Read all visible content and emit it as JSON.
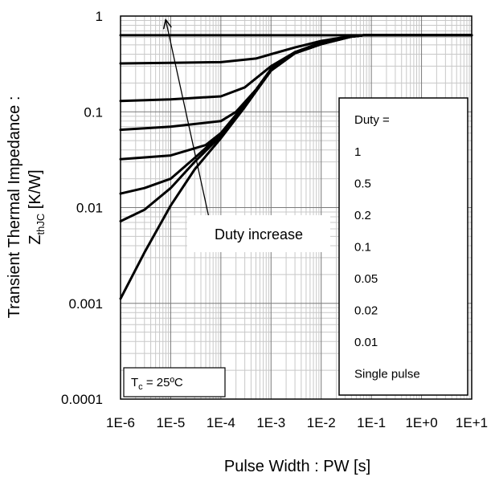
{
  "chart_data": {
    "type": "line",
    "x_scale": "log",
    "y_scale": "log",
    "xlim": [
      1e-06,
      10
    ],
    "ylim": [
      0.0001,
      1
    ],
    "grid": true,
    "xlabel": "Pulse Width : PW [s]",
    "ylabel_line1": "Transient Thermal Impedance :",
    "ylabel_line2_main": "Z",
    "ylabel_line2_sub": "thJC",
    "ylabel_line2_unit": " [K/W]",
    "x_tick_labels": [
      "1E-6",
      "1E-5",
      "1E-4",
      "1E-3",
      "1E-2",
      "1E-1",
      "1E+0",
      "1E+1"
    ],
    "y_tick_labels": [
      "0.0001",
      "0.001",
      "0.01",
      "0.1",
      "1"
    ],
    "legend_position": "right",
    "legend_header": "Duty =",
    "legend": [
      "1",
      "0.5",
      "0.2",
      "0.1",
      "0.05",
      "0.02",
      "0.01",
      "Single pulse"
    ],
    "series_color": "#000000",
    "series": [
      {
        "x": [
          1e-06,
          1e-05,
          0.0001,
          0.001,
          0.01,
          0.07,
          1,
          10
        ],
        "y": [
          0.63,
          0.63,
          0.63,
          0.63,
          0.63,
          0.63,
          0.63,
          0.63
        ]
      },
      {
        "x": [
          1e-06,
          1e-05,
          0.0001,
          0.0005,
          0.001,
          0.003,
          0.01,
          0.04,
          0.07,
          1,
          10
        ],
        "y": [
          0.32,
          0.325,
          0.33,
          0.36,
          0.4,
          0.47,
          0.55,
          0.62,
          0.63,
          0.63,
          0.63
        ]
      },
      {
        "x": [
          1e-06,
          1e-05,
          0.0001,
          0.0003,
          0.001,
          0.003,
          0.01,
          0.04,
          0.07,
          1,
          10
        ],
        "y": [
          0.13,
          0.135,
          0.145,
          0.18,
          0.3,
          0.42,
          0.53,
          0.61,
          0.63,
          0.63,
          0.63
        ]
      },
      {
        "x": [
          1e-06,
          1e-05,
          0.0001,
          0.0002,
          0.0005,
          0.001,
          0.003,
          0.01,
          0.04,
          0.07,
          1,
          10
        ],
        "y": [
          0.065,
          0.07,
          0.08,
          0.1,
          0.17,
          0.28,
          0.42,
          0.52,
          0.61,
          0.63,
          0.63,
          0.63
        ]
      },
      {
        "x": [
          1e-06,
          1e-05,
          5e-05,
          0.0001,
          0.0003,
          0.001,
          0.003,
          0.01,
          0.04,
          0.07,
          1,
          10
        ],
        "y": [
          0.032,
          0.035,
          0.045,
          0.06,
          0.12,
          0.27,
          0.41,
          0.51,
          0.61,
          0.63,
          0.63,
          0.63
        ]
      },
      {
        "x": [
          1e-06,
          3e-06,
          1e-05,
          3e-05,
          0.0001,
          0.0003,
          0.001,
          0.003,
          0.01,
          0.04,
          0.07,
          1,
          10
        ],
        "y": [
          0.014,
          0.016,
          0.02,
          0.033,
          0.058,
          0.115,
          0.27,
          0.41,
          0.51,
          0.61,
          0.63,
          0.63,
          0.63
        ]
      },
      {
        "x": [
          1e-06,
          3e-06,
          1e-05,
          3e-05,
          0.0001,
          0.0003,
          0.001,
          0.003,
          0.01,
          0.04,
          0.07,
          1,
          10
        ],
        "y": [
          0.0072,
          0.0095,
          0.016,
          0.03,
          0.056,
          0.113,
          0.27,
          0.41,
          0.51,
          0.61,
          0.63,
          0.63,
          0.63
        ]
      },
      {
        "x": [
          1e-06,
          3e-06,
          1e-05,
          3e-05,
          0.0001,
          0.0003,
          0.001,
          0.003,
          0.01,
          0.04,
          0.07,
          1,
          10
        ],
        "y": [
          0.00112,
          0.0034,
          0.0105,
          0.025,
          0.053,
          0.112,
          0.27,
          0.41,
          0.51,
          0.61,
          0.63,
          0.63,
          0.63
        ]
      }
    ],
    "annotations": {
      "arrow_label": "Duty increase",
      "arrow_from": {
        "x": 6e-05,
        "y": 0.0072
      },
      "arrow_to": {
        "x": 8e-06,
        "y": 0.9
      },
      "tc_prefix": "T",
      "tc_sub": "c",
      "tc_suffix": " = 25ºC"
    }
  }
}
